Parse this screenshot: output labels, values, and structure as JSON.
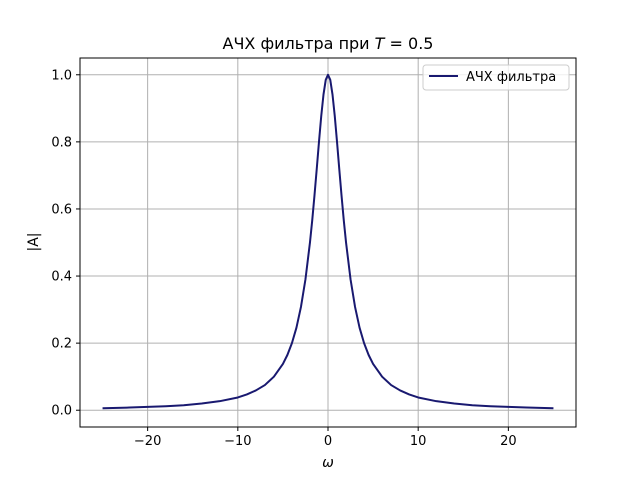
{
  "chart_data": {
    "type": "line",
    "title_prefix": "АЧХ фильтра при ",
    "title_var": "T",
    "title_rest": " = 0.5",
    "xlabel": "ω",
    "ylabel": "|A|",
    "xlim": [
      -27.5,
      27.5
    ],
    "ylim": [
      -0.05,
      1.05
    ],
    "x_ticks": [
      -20,
      -10,
      0,
      10,
      20
    ],
    "x_tick_labels": [
      "−20",
      "−10",
      "0",
      "10",
      "20"
    ],
    "y_ticks": [
      0.0,
      0.2,
      0.4,
      0.6,
      0.8,
      1.0
    ],
    "y_tick_labels": [
      "0.0",
      "0.2",
      "0.4",
      "0.6",
      "0.8",
      "1.0"
    ],
    "grid": true,
    "legend_position": "top-right",
    "series": [
      {
        "name": "АЧХ фильтра",
        "color": "#191970",
        "x": [
          -25,
          -22,
          -20,
          -18,
          -16,
          -14,
          -12,
          -10,
          -9,
          -8,
          -7,
          -6,
          -5,
          -4.5,
          -4,
          -3.5,
          -3,
          -2.5,
          -2,
          -1.75,
          -1.5,
          -1.25,
          -1,
          -0.75,
          -0.5,
          -0.25,
          0,
          0.25,
          0.5,
          0.75,
          1,
          1.25,
          1.5,
          1.75,
          2,
          2.5,
          3,
          3.5,
          4,
          4.5,
          5,
          6,
          7,
          8,
          9,
          10,
          12,
          14,
          16,
          18,
          20,
          22,
          25
        ],
        "y": [
          0.006,
          0.008,
          0.01,
          0.012,
          0.015,
          0.02,
          0.027,
          0.038,
          0.047,
          0.059,
          0.075,
          0.1,
          0.138,
          0.165,
          0.2,
          0.246,
          0.308,
          0.39,
          0.5,
          0.566,
          0.64,
          0.719,
          0.8,
          0.877,
          0.941,
          0.985,
          1.0,
          0.985,
          0.941,
          0.877,
          0.8,
          0.719,
          0.64,
          0.566,
          0.5,
          0.39,
          0.308,
          0.246,
          0.2,
          0.165,
          0.138,
          0.1,
          0.075,
          0.059,
          0.047,
          0.038,
          0.027,
          0.02,
          0.015,
          0.012,
          0.01,
          0.008,
          0.006
        ]
      }
    ]
  }
}
